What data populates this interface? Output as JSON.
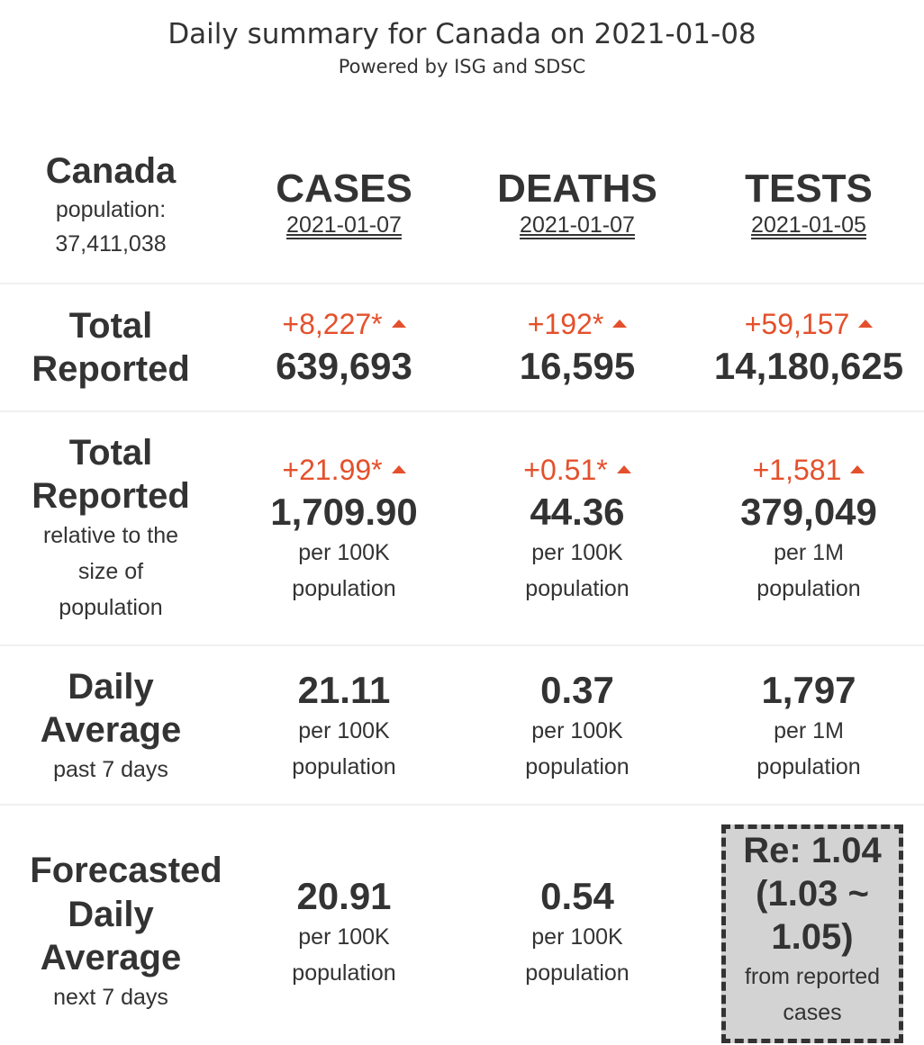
{
  "header": {
    "title": "Daily summary for Canada on 2021-01-08",
    "subtitle": "Powered by ISG and SDSC"
  },
  "region": {
    "name": "Canada",
    "population_label": "population:",
    "population_value": "37,411,038"
  },
  "columns": [
    {
      "label": "CASES",
      "date": "2021-01-07"
    },
    {
      "label": "DEATHS",
      "date": "2021-01-07"
    },
    {
      "label": "TESTS",
      "date": "2021-01-05"
    }
  ],
  "rows": {
    "total": {
      "label_line1": "Total",
      "label_line2": "Reported",
      "cells": [
        {
          "delta": "+8,227*",
          "value": "639,693"
        },
        {
          "delta": "+192*",
          "value": "16,595"
        },
        {
          "delta": "+59,157",
          "value": "14,180,625"
        }
      ]
    },
    "relative": {
      "label_line1": "Total",
      "label_line2": "Reported",
      "label_sub1": "relative to the",
      "label_sub2": "size of",
      "label_sub3": "population",
      "cells": [
        {
          "delta": "+21.99*",
          "value": "1,709.90",
          "unit1": "per 100K",
          "unit2": "population"
        },
        {
          "delta": "+0.51*",
          "value": "44.36",
          "unit1": "per 100K",
          "unit2": "population"
        },
        {
          "delta": "+1,581",
          "value": "379,049",
          "unit1": "per 1M",
          "unit2": "population"
        }
      ]
    },
    "daily_avg": {
      "label_line1": "Daily",
      "label_line2": "Average",
      "label_sub": "past 7 days",
      "cells": [
        {
          "value": "21.11",
          "unit1": "per 100K",
          "unit2": "population"
        },
        {
          "value": "0.37",
          "unit1": "per 100K",
          "unit2": "population"
        },
        {
          "value": "1,797",
          "unit1": "per 1M",
          "unit2": "population"
        }
      ]
    },
    "forecast": {
      "label_line1": "Forecasted",
      "label_line2": "Daily",
      "label_line3": "Average",
      "label_sub": "next 7 days",
      "cells": [
        {
          "value": "20.91",
          "unit1": "per 100K",
          "unit2": "population"
        },
        {
          "value": "0.54",
          "unit1": "per 100K",
          "unit2": "population"
        }
      ],
      "re": {
        "line1": "Re: 1.04",
        "line2": "(1.03 ~",
        "line3": "1.05)",
        "sub1": "from reported",
        "sub2": "cases"
      }
    }
  },
  "colors": {
    "increase": "#e4502c",
    "text": "#333333",
    "re_box_bg": "#d3d3d3"
  }
}
